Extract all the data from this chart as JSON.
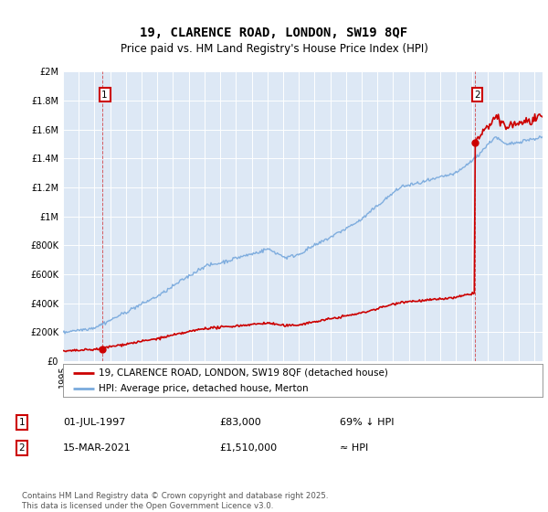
{
  "title": "19, CLARENCE ROAD, LONDON, SW19 8QF",
  "subtitle": "Price paid vs. HM Land Registry's House Price Index (HPI)",
  "legend_line1": "19, CLARENCE ROAD, LONDON, SW19 8QF (detached house)",
  "legend_line2": "HPI: Average price, detached house, Merton",
  "annotation1_label": "1",
  "annotation1_date": "01-JUL-1997",
  "annotation1_price": "£83,000",
  "annotation1_hpi": "69% ↓ HPI",
  "annotation2_label": "2",
  "annotation2_date": "15-MAR-2021",
  "annotation2_price": "£1,510,000",
  "annotation2_hpi": "≈ HPI",
  "footer": "Contains HM Land Registry data © Crown copyright and database right 2025.\nThis data is licensed under the Open Government Licence v3.0.",
  "sale1_year": 1997.5,
  "sale1_price": 83000,
  "sale2_year": 2021.2,
  "sale2_price": 1510000,
  "red_color": "#cc0000",
  "blue_color": "#7aaadd",
  "plot_bg": "#dde8f5",
  "ylim_max": 2000000,
  "xlim_min": 1995,
  "xlim_max": 2025.5
}
